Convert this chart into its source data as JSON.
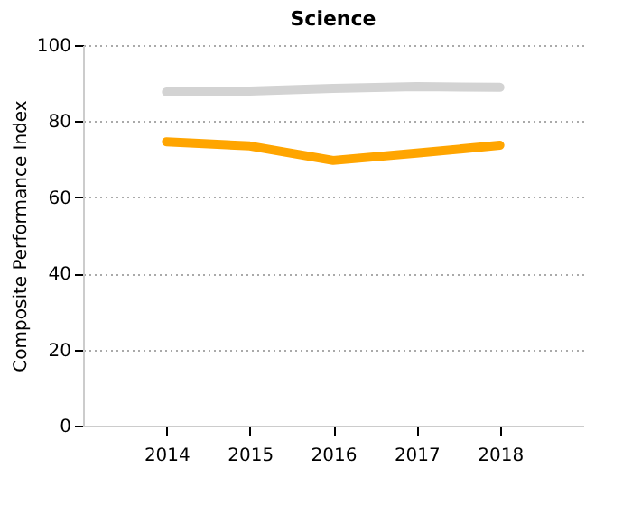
{
  "chart_data": {
    "type": "line",
    "title": "Science",
    "ylabel": "Composite Performance Index",
    "categories": [
      "2014",
      "2015",
      "2016",
      "2017",
      "2018"
    ],
    "series": [
      {
        "color": "#d3d3d3",
        "values": [
          87.7,
          87.9,
          88.6,
          89.1,
          88.9
        ]
      },
      {
        "color": "#ffa500",
        "values": [
          74.6,
          73.5,
          69.7,
          71.6,
          73.7
        ]
      }
    ],
    "ylim": [
      0,
      100
    ],
    "yticks": [
      0,
      20,
      40,
      60,
      80,
      100
    ],
    "grid": "y",
    "legend": false,
    "marker": "none",
    "line_style": "solid"
  }
}
